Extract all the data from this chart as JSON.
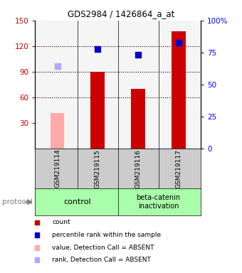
{
  "title": "GDS2984 / 1426864_a_at",
  "samples": [
    "GSM219114",
    "GSM219115",
    "GSM219116",
    "GSM219117"
  ],
  "bar_values": [
    42,
    90,
    70,
    137
  ],
  "bar_colors": [
    "#ffaaaa",
    "#cc0000",
    "#cc0000",
    "#cc0000"
  ],
  "square_values": [
    97,
    117,
    110,
    124
  ],
  "square_colors": [
    "#aaaaff",
    "#0000cc",
    "#0000cc",
    "#0000cc"
  ],
  "square_sizes": [
    35,
    35,
    35,
    35
  ],
  "ylim_left": [
    0,
    150
  ],
  "ylim_right": [
    0,
    100
  ],
  "yticks_left": [
    30,
    60,
    90,
    120,
    150
  ],
  "yticks_right": [
    0,
    25,
    50,
    75,
    100
  ],
  "ytick_labels_left": [
    "30",
    "60",
    "90",
    "120",
    "150"
  ],
  "ytick_labels_right": [
    "0",
    "25",
    "50",
    "75",
    "100%"
  ],
  "dotted_lines": [
    60,
    90,
    120
  ],
  "bar_width": 0.35,
  "legend_items": [
    {
      "color": "#cc0000",
      "label": "count"
    },
    {
      "color": "#0000cc",
      "label": "percentile rank within the sample"
    },
    {
      "color": "#ffaaaa",
      "label": "value, Detection Call = ABSENT"
    },
    {
      "color": "#aaaaff",
      "label": "rank, Detection Call = ABSENT"
    }
  ],
  "group_color": "#aaffaa",
  "sample_area_color": "#cccccc",
  "plot_bg": "#f5f5f5"
}
